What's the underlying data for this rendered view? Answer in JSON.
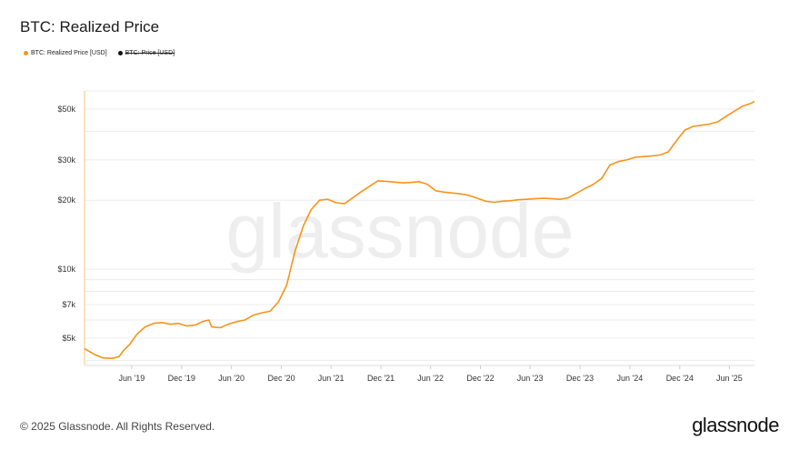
{
  "title": "BTC: Realized Price",
  "legend": [
    {
      "label": "BTC: Realized Price [USD]",
      "color": "#f7931a",
      "active": true
    },
    {
      "label": "BTC: Price [USD]",
      "color": "#111111",
      "active": false
    }
  ],
  "watermark": "glassnode",
  "footer": {
    "copyright": "© 2025 Glassnode. All Rights Reserved.",
    "brand": "glassnode"
  },
  "chart_data": {
    "type": "line",
    "title": "BTC: Realized Price",
    "y_scale": "log",
    "ylim": [
      3800,
      60000
    ],
    "y_ticks": [
      {
        "value": 5000,
        "label": "$5k"
      },
      {
        "value": 7000,
        "label": "$7k"
      },
      {
        "value": 10000,
        "label": "$10k"
      },
      {
        "value": 20000,
        "label": "$20k"
      },
      {
        "value": 30000,
        "label": "$30k"
      },
      {
        "value": 50000,
        "label": "$50k"
      }
    ],
    "xlim": [
      "2018-12-10",
      "2025-09-01"
    ],
    "x_ticks": [
      {
        "date": "2019-06-01",
        "label": "Jun '19"
      },
      {
        "date": "2019-12-01",
        "label": "Dec '19"
      },
      {
        "date": "2020-06-01",
        "label": "Jun '20"
      },
      {
        "date": "2020-12-01",
        "label": "Dec '20"
      },
      {
        "date": "2021-06-01",
        "label": "Jun '21"
      },
      {
        "date": "2021-12-01",
        "label": "Dec '21"
      },
      {
        "date": "2022-06-01",
        "label": "Jun '22"
      },
      {
        "date": "2022-12-01",
        "label": "Dec '22"
      },
      {
        "date": "2023-06-01",
        "label": "Jun '23"
      },
      {
        "date": "2023-12-01",
        "label": "Dec '23"
      },
      {
        "date": "2024-06-01",
        "label": "Jun '24"
      },
      {
        "date": "2024-12-01",
        "label": "Dec '24"
      },
      {
        "date": "2025-06-01",
        "label": "Jun '25"
      }
    ],
    "grid": true,
    "legend_position": "top-left",
    "series": [
      {
        "name": "BTC: Realized Price [USD]",
        "color": "#f7931a",
        "points": [
          [
            "2018-12-10",
            4500
          ],
          [
            "2019-01-15",
            4250
          ],
          [
            "2019-02-15",
            4100
          ],
          [
            "2019-03-20",
            4080
          ],
          [
            "2019-04-15",
            4150
          ],
          [
            "2019-05-01",
            4400
          ],
          [
            "2019-05-25",
            4700
          ],
          [
            "2019-06-20",
            5200
          ],
          [
            "2019-07-20",
            5600
          ],
          [
            "2019-08-20",
            5800
          ],
          [
            "2019-09-20",
            5850
          ],
          [
            "2019-10-20",
            5750
          ],
          [
            "2019-11-20",
            5800
          ],
          [
            "2019-12-20",
            5650
          ],
          [
            "2020-01-20",
            5700
          ],
          [
            "2020-02-15",
            5900
          ],
          [
            "2020-03-10",
            6000
          ],
          [
            "2020-03-20",
            5600
          ],
          [
            "2020-04-20",
            5550
          ],
          [
            "2020-05-20",
            5750
          ],
          [
            "2020-06-20",
            5900
          ],
          [
            "2020-07-20",
            6000
          ],
          [
            "2020-08-20",
            6300
          ],
          [
            "2020-09-20",
            6450
          ],
          [
            "2020-10-20",
            6550
          ],
          [
            "2020-11-20",
            7200
          ],
          [
            "2020-12-20",
            8500
          ],
          [
            "2021-01-20",
            12000
          ],
          [
            "2021-02-20",
            15500
          ],
          [
            "2021-03-20",
            18200
          ],
          [
            "2021-04-20",
            20000
          ],
          [
            "2021-05-20",
            20200
          ],
          [
            "2021-06-20",
            19500
          ],
          [
            "2021-07-20",
            19300
          ],
          [
            "2021-08-20",
            20500
          ],
          [
            "2021-09-20",
            21800
          ],
          [
            "2021-10-20",
            23000
          ],
          [
            "2021-11-20",
            24300
          ],
          [
            "2021-12-20",
            24200
          ],
          [
            "2022-01-20",
            24000
          ],
          [
            "2022-02-20",
            23800
          ],
          [
            "2022-03-20",
            23900
          ],
          [
            "2022-04-20",
            24100
          ],
          [
            "2022-05-20",
            23500
          ],
          [
            "2022-06-20",
            22000
          ],
          [
            "2022-07-20",
            21700
          ],
          [
            "2022-08-20",
            21500
          ],
          [
            "2022-09-20",
            21300
          ],
          [
            "2022-10-20",
            21000
          ],
          [
            "2022-11-20",
            20400
          ],
          [
            "2022-12-20",
            19800
          ],
          [
            "2023-01-20",
            19600
          ],
          [
            "2023-02-20",
            19800
          ],
          [
            "2023-03-20",
            19900
          ],
          [
            "2023-04-20",
            20100
          ],
          [
            "2023-05-20",
            20200
          ],
          [
            "2023-06-20",
            20300
          ],
          [
            "2023-07-20",
            20400
          ],
          [
            "2023-08-20",
            20300
          ],
          [
            "2023-09-20",
            20200
          ],
          [
            "2023-10-20",
            20500
          ],
          [
            "2023-11-20",
            21500
          ],
          [
            "2023-12-20",
            22500
          ],
          [
            "2024-01-20",
            23500
          ],
          [
            "2024-02-20",
            25000
          ],
          [
            "2024-03-20",
            28500
          ],
          [
            "2024-04-20",
            29500
          ],
          [
            "2024-05-20",
            30000
          ],
          [
            "2024-06-20",
            30800
          ],
          [
            "2024-07-20",
            31000
          ],
          [
            "2024-08-20",
            31200
          ],
          [
            "2024-09-20",
            31500
          ],
          [
            "2024-10-20",
            32500
          ],
          [
            "2024-11-20",
            36500
          ],
          [
            "2024-12-20",
            40500
          ],
          [
            "2025-01-20",
            42000
          ],
          [
            "2025-02-20",
            42500
          ],
          [
            "2025-03-20",
            43000
          ],
          [
            "2025-04-20",
            44000
          ],
          [
            "2025-05-20",
            46500
          ],
          [
            "2025-06-20",
            49000
          ],
          [
            "2025-07-20",
            51500
          ],
          [
            "2025-08-20",
            53000
          ],
          [
            "2025-09-01",
            54000
          ]
        ]
      }
    ]
  }
}
